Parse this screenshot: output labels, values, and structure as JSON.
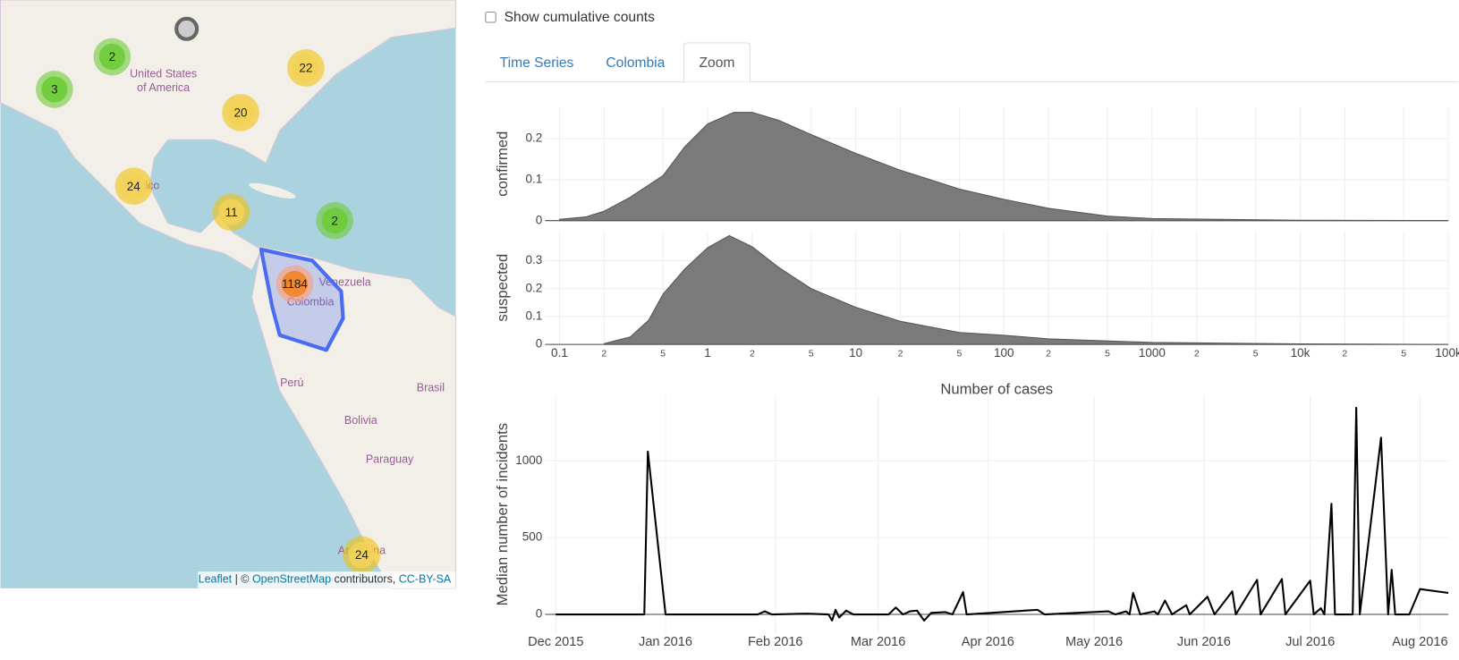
{
  "map": {
    "labels": [
      "United States",
      "of America",
      "México",
      "Venezuela",
      "Colombia",
      "Perú",
      "Brasil",
      "Bolivia",
      "Paraguay",
      "Argentina"
    ],
    "clusters": [
      2,
      3,
      22,
      20,
      24,
      11,
      2,
      1184,
      24
    ],
    "attribution": [
      "Leaflet",
      " | © ",
      "OpenStreetMap",
      " contributors, ",
      "CC-BY-SA"
    ]
  },
  "controls": {
    "checkbox_label": "Show cumulative counts",
    "checked": false
  },
  "tabs": [
    "Time Series",
    "Colombia",
    "Zoom"
  ],
  "active_tab": 2,
  "chart_data": [
    {
      "type": "area",
      "y_label": "confirmed",
      "log_x": true,
      "color": "#7a7a7a",
      "x": [
        0.1,
        0.15,
        0.2,
        0.3,
        0.5,
        0.7,
        1,
        1.5,
        2,
        3,
        5,
        10,
        20,
        50,
        100,
        200,
        500,
        1000,
        10000,
        100000
      ],
      "values": [
        0.003,
        0.009,
        0.023,
        0.057,
        0.11,
        0.18,
        0.236,
        0.264,
        0.264,
        0.245,
        0.21,
        0.164,
        0.123,
        0.077,
        0.052,
        0.03,
        0.011,
        0.005,
        0.001,
        0
      ],
      "xlim": [
        0.08,
        100000
      ],
      "ylim": [
        0,
        0.277
      ],
      "yticks": [
        0,
        0.1,
        0.2
      ],
      "grid": true
    },
    {
      "type": "area",
      "y_label": "suspected",
      "x_label": "Number of cases",
      "log_x": true,
      "color": "#7a7a7a",
      "x": [
        0.2,
        0.3,
        0.4,
        0.5,
        0.7,
        1,
        1.4,
        2,
        3,
        5,
        10,
        20,
        50,
        100,
        200,
        1000,
        10000,
        100000
      ],
      "values": [
        0.003,
        0.027,
        0.087,
        0.18,
        0.27,
        0.347,
        0.39,
        0.35,
        0.277,
        0.2,
        0.133,
        0.083,
        0.043,
        0.033,
        0.02,
        0.007,
        0.002,
        0
      ],
      "xlim": [
        0.08,
        100000
      ],
      "ylim": [
        0,
        0.407
      ],
      "yticks": [
        0,
        0.1,
        0.2,
        0.3
      ],
      "xticks": [
        0.1,
        {
          "value": 0.2,
          "label": "2"
        },
        {
          "value": 0.5,
          "label": "5"
        },
        1,
        2,
        5,
        10,
        {
          "value": 20,
          "label": "2"
        },
        {
          "value": 50,
          "label": "5"
        },
        100,
        {
          "value": 200,
          "label": "2"
        },
        {
          "value": 500,
          "label": "5"
        },
        1000,
        {
          "value": 2000,
          "label": "2"
        },
        {
          "value": 5000,
          "label": "5"
        },
        {
          "value": 10000,
          "label": "10k"
        },
        {
          "value": 20000,
          "label": "2"
        },
        {
          "value": 50000,
          "label": "5"
        },
        {
          "value": 100000,
          "label": "100k"
        }
      ],
      "grid": true
    },
    {
      "type": "line",
      "y_label": "Median number of incidents",
      "color": "#000000",
      "x": [
        "2015-12-01",
        "2015-12-26",
        "2015-12-27",
        "2016-01-01",
        "2016-01-27",
        "2016-01-29",
        "2016-01-31",
        "2016-02-10",
        "2016-02-16",
        "2016-02-17",
        "2016-02-18",
        "2016-02-19",
        "2016-02-21",
        "2016-02-23",
        "2016-03-04",
        "2016-03-06",
        "2016-03-08",
        "2016-03-10",
        "2016-03-12",
        "2016-03-14",
        "2016-03-16",
        "2016-03-20",
        "2016-03-22",
        "2016-03-25",
        "2016-03-26",
        "2016-04-15",
        "2016-04-17",
        "2016-05-05",
        "2016-05-07",
        "2016-05-10",
        "2016-05-11",
        "2016-05-12",
        "2016-05-14",
        "2016-05-18",
        "2016-05-19",
        "2016-05-21",
        "2016-05-23",
        "2016-05-27",
        "2016-05-28",
        "2016-06-02",
        "2016-06-04",
        "2016-06-09",
        "2016-06-10",
        "2016-06-16",
        "2016-06-17",
        "2016-06-23",
        "2016-06-24",
        "2016-07-01",
        "2016-07-02",
        "2016-07-04",
        "2016-07-05",
        "2016-07-07",
        "2016-07-08",
        "2016-07-13",
        "2016-07-14",
        "2016-07-15",
        "2016-07-21",
        "2016-07-23",
        "2016-07-24",
        "2016-07-25",
        "2016-07-29",
        "2016-08-01",
        "2016-08-09"
      ],
      "values": [
        0,
        0,
        1060,
        0,
        0,
        20,
        0,
        5,
        0,
        -40,
        30,
        -20,
        25,
        0,
        0,
        45,
        0,
        20,
        25,
        -40,
        10,
        15,
        0,
        145,
        0,
        30,
        0,
        20,
        0,
        20,
        0,
        140,
        0,
        20,
        0,
        90,
        0,
        60,
        0,
        115,
        0,
        150,
        0,
        225,
        0,
        230,
        0,
        220,
        0,
        40,
        0,
        720,
        0,
        0,
        1345,
        0,
        1150,
        0,
        290,
        0,
        0,
        165,
        140
      ],
      "xlim": [
        "2015-11-28",
        "2016-08-09"
      ],
      "ylim": [
        -121,
        1424
      ],
      "yticks": [
        0,
        500,
        1000
      ],
      "xticks": [
        {
          "value": "2015-12-01",
          "label": "Dec 2015"
        },
        {
          "value": "2016-01-01",
          "label": "Jan 2016"
        },
        {
          "value": "2016-02-01",
          "label": "Feb 2016"
        },
        {
          "value": "2016-03-01",
          "label": "Mar 2016"
        },
        {
          "value": "2016-04-01",
          "label": "Apr 2016"
        },
        {
          "value": "2016-05-01",
          "label": "May 2016"
        },
        {
          "value": "2016-06-01",
          "label": "Jun 2016"
        },
        {
          "value": "2016-07-01",
          "label": "Jul 2016"
        },
        {
          "value": "2016-08-01",
          "label": "Aug 2016"
        }
      ],
      "grid": true
    }
  ]
}
